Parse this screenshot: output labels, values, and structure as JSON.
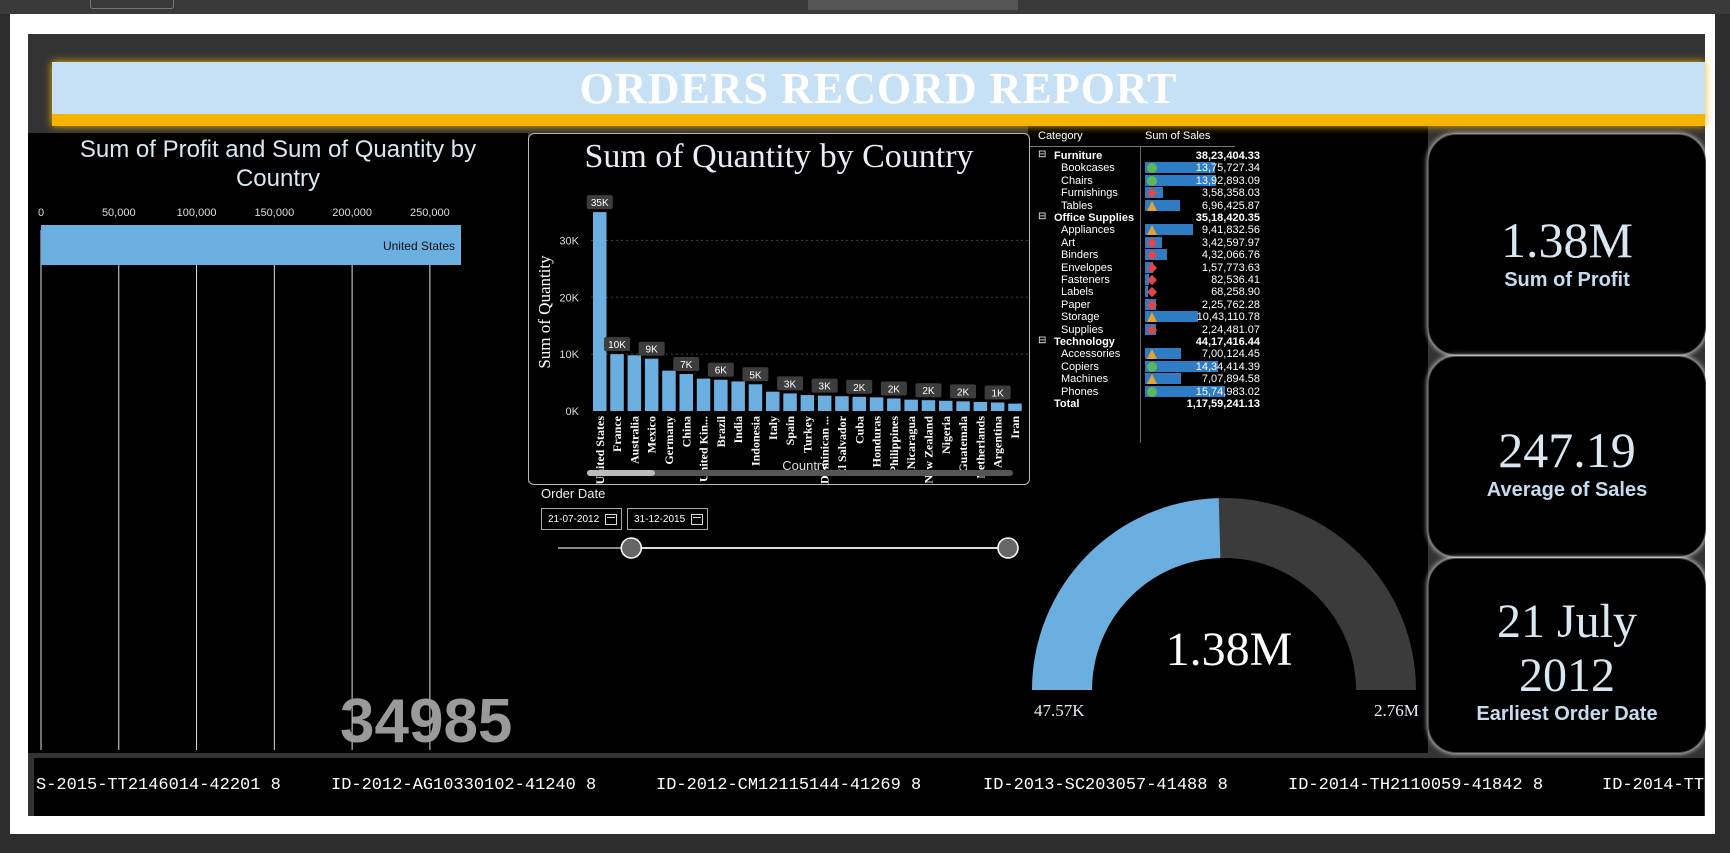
{
  "report_title": "ORDERS RECORD REPORT",
  "profit_chart": {
    "title_line1": "Sum of Profit and Sum of Quantity by",
    "title_line2": "Country",
    "big_number": "34985"
  },
  "quantity_chart": {
    "title": "Sum of Quantity by Country",
    "xlabel": "Country"
  },
  "order_date": {
    "label": "Order Date",
    "start": "21-07-2012",
    "end": "31-12-2015",
    "range_start_fraction": 0.16,
    "range_end_fraction": 1.0
  },
  "matrix": {
    "header_category": "Category",
    "header_sales": "Sum of Sales",
    "bar_max": 1574983.02,
    "rows": [
      {
        "label": "Furniture",
        "value": "38,23,404.33",
        "level": 0,
        "num": 3823404.33,
        "ind": "none"
      },
      {
        "label": "Bookcases",
        "value": "13,75,727.34",
        "level": 1,
        "num": 1375727.34,
        "ind": "circle"
      },
      {
        "label": "Chairs",
        "value": "13,92,893.09",
        "level": 1,
        "num": 1392893.09,
        "ind": "circle"
      },
      {
        "label": "Furnishings",
        "value": "3,58,358.03",
        "level": 1,
        "num": 358358.03,
        "ind": "diamond"
      },
      {
        "label": "Tables",
        "value": "6,96,425.87",
        "level": 1,
        "num": 696425.87,
        "ind": "triangle"
      },
      {
        "label": "Office Supplies",
        "value": "35,18,420.35",
        "level": 0,
        "num": 3518420.35,
        "ind": "none"
      },
      {
        "label": "Appliances",
        "value": "9,41,832.56",
        "level": 1,
        "num": 941832.56,
        "ind": "triangle"
      },
      {
        "label": "Art",
        "value": "3,42,597.97",
        "level": 1,
        "num": 342597.97,
        "ind": "diamond"
      },
      {
        "label": "Binders",
        "value": "4,32,066.76",
        "level": 1,
        "num": 432066.76,
        "ind": "diamond"
      },
      {
        "label": "Envelopes",
        "value": "1,57,773.63",
        "level": 1,
        "num": 157773.63,
        "ind": "diamond"
      },
      {
        "label": "Fasteners",
        "value": "82,536.41",
        "level": 1,
        "num": 82536.41,
        "ind": "diamond"
      },
      {
        "label": "Labels",
        "value": "68,258.90",
        "level": 1,
        "num": 68258.9,
        "ind": "diamond"
      },
      {
        "label": "Paper",
        "value": "2,25,762.28",
        "level": 1,
        "num": 225762.28,
        "ind": "diamond"
      },
      {
        "label": "Storage",
        "value": "10,43,110.78",
        "level": 1,
        "num": 1043110.78,
        "ind": "triangle"
      },
      {
        "label": "Supplies",
        "value": "2,24,481.07",
        "level": 1,
        "num": 224481.07,
        "ind": "diamond"
      },
      {
        "label": "Technology",
        "value": "44,17,416.44",
        "level": 0,
        "num": 4417416.44,
        "ind": "none"
      },
      {
        "label": "Accessories",
        "value": "7,00,124.45",
        "level": 1,
        "num": 700124.45,
        "ind": "triangle"
      },
      {
        "label": "Copiers",
        "value": "14,34,414.39",
        "level": 1,
        "num": 1434414.39,
        "ind": "circle"
      },
      {
        "label": "Machines",
        "value": "7,07,894.58",
        "level": 1,
        "num": 707894.58,
        "ind": "triangle"
      },
      {
        "label": "Phones",
        "value": "15,74,983.02",
        "level": 1,
        "num": 1574983.02,
        "ind": "circle"
      },
      {
        "label": "Total",
        "value": "1,17,59,241.13",
        "level": 2,
        "num": 11759241.13,
        "ind": "none"
      }
    ]
  },
  "gauge": {
    "value_label": "1.38M",
    "min_label": "47.57K",
    "max_label": "2.76M",
    "value": 1380000,
    "min": 47570,
    "max": 2760000
  },
  "cards": [
    {
      "value": "1.38M",
      "label": "Sum of Profit"
    },
    {
      "value": "247.19",
      "label": "Average of Sales"
    },
    {
      "value_line1": "21 July",
      "value_line2": "2012",
      "label": "Earliest Order Date"
    }
  ],
  "ticker": [
    "S-2015-TT2146014-42201 8",
    "ID-2012-AG10330102-41240 8",
    "ID-2012-CM12115144-41269 8",
    "ID-2013-SC203057-41488 8",
    "ID-2014-TH2110059-41842 8",
    "ID-2014-TT"
  ],
  "colors": {
    "bar": "#6baee0",
    "banner_gold": "#f4b400",
    "banner_blue": "#c6e0f5",
    "gauge_track": "#3b3b3b",
    "circle_ind": "#5fb55a",
    "diamond_ind": "#e04848",
    "triangle_ind": "#e8a232"
  },
  "chart_data": [
    {
      "type": "bar",
      "orientation": "horizontal",
      "title": "Sum of Profit and Sum of Quantity by Country",
      "x_ticks": [
        "0",
        "50,000",
        "100,000",
        "150,000",
        "200,000",
        "250,000"
      ],
      "xlim": [
        0,
        270000
      ],
      "categories": [
        "United States"
      ],
      "values": [
        270000
      ]
    },
    {
      "type": "bar",
      "title": "Sum of Quantity by Country",
      "xlabel": "Country",
      "ylabel": "Sum of Quantity",
      "ylim": [
        0,
        35000
      ],
      "y_ticks": [
        "0K",
        "10K",
        "20K",
        "30K"
      ],
      "categories": [
        "United States",
        "France",
        "Australia",
        "Mexico",
        "Germany",
        "China",
        "United Kin...",
        "Brazil",
        "India",
        "Indonesia",
        "Italy",
        "Spain",
        "Turkey",
        "Dominican ...",
        "El Salvador",
        "Cuba",
        "Honduras",
        "Philippines",
        "Nicaragua",
        "New Zealand",
        "Nigeria",
        "Guatemala",
        "Netherlands",
        "Argentina",
        "Iran"
      ],
      "values": [
        34985,
        10000,
        9800,
        9200,
        7100,
        6500,
        5700,
        5500,
        5200,
        4700,
        3400,
        3100,
        2800,
        2700,
        2600,
        2500,
        2400,
        2200,
        2000,
        1900,
        1800,
        1700,
        1600,
        1500,
        1300
      ],
      "data_labels": [
        {
          "index": 0,
          "text": "35K"
        },
        {
          "index": 1,
          "text": "10K"
        },
        {
          "index": 3,
          "text": "9K"
        },
        {
          "index": 5,
          "text": "7K"
        },
        {
          "index": 7,
          "text": "6K"
        },
        {
          "index": 9,
          "text": "5K"
        },
        {
          "index": 11,
          "text": "3K"
        },
        {
          "index": 13,
          "text": "3K"
        },
        {
          "index": 15,
          "text": "2K"
        },
        {
          "index": 17,
          "text": "2K"
        },
        {
          "index": 19,
          "text": "2K"
        },
        {
          "index": 21,
          "text": "2K"
        },
        {
          "index": 23,
          "text": "1K"
        }
      ]
    }
  ]
}
